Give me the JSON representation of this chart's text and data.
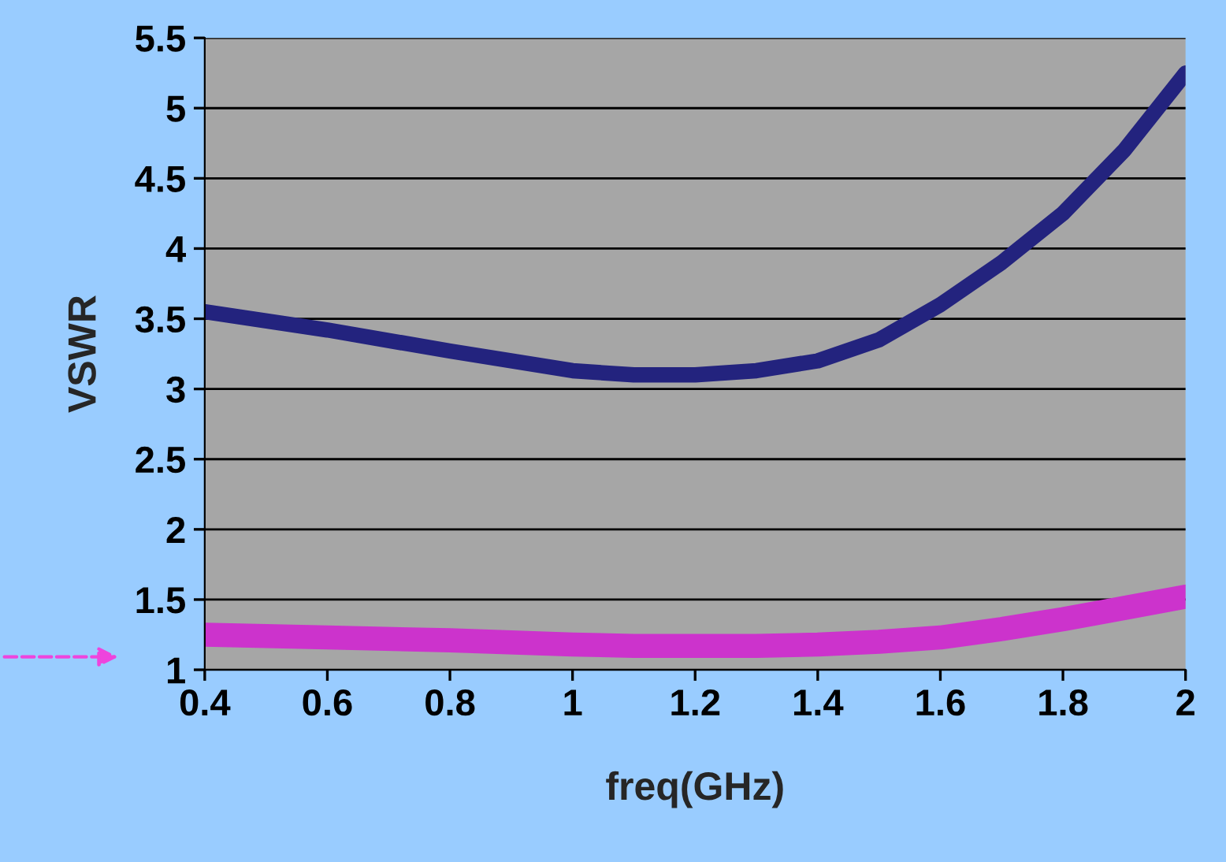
{
  "chart_data": {
    "type": "line",
    "xlabel": "freq(GHz)",
    "ylabel": "VSWR",
    "x": [
      0.4,
      0.6,
      0.8,
      1.0,
      1.1,
      1.2,
      1.3,
      1.4,
      1.5,
      1.6,
      1.7,
      1.8,
      1.9,
      2.0
    ],
    "series": [
      {
        "color": "#23237e",
        "values": [
          3.55,
          3.42,
          3.27,
          3.13,
          3.1,
          3.1,
          3.13,
          3.2,
          3.35,
          3.6,
          3.9,
          4.25,
          4.7,
          5.25
        ]
      },
      {
        "color": "#cc33cc",
        "values": [
          1.25,
          1.23,
          1.21,
          1.18,
          1.17,
          1.17,
          1.17,
          1.18,
          1.2,
          1.23,
          1.29,
          1.36,
          1.44,
          1.52
        ]
      }
    ],
    "xlim": [
      0.4,
      2
    ],
    "xticks": [
      0.4,
      0.6,
      0.8,
      1,
      1.2,
      1.4,
      1.6,
      1.8,
      2
    ],
    "ylim": [
      1,
      5.5
    ],
    "yticks": [
      1,
      1.5,
      2,
      2.5,
      3,
      3.5,
      4,
      4.5,
      5,
      5.5
    ],
    "grid": "y",
    "marker": "none",
    "line_style": "solid"
  }
}
